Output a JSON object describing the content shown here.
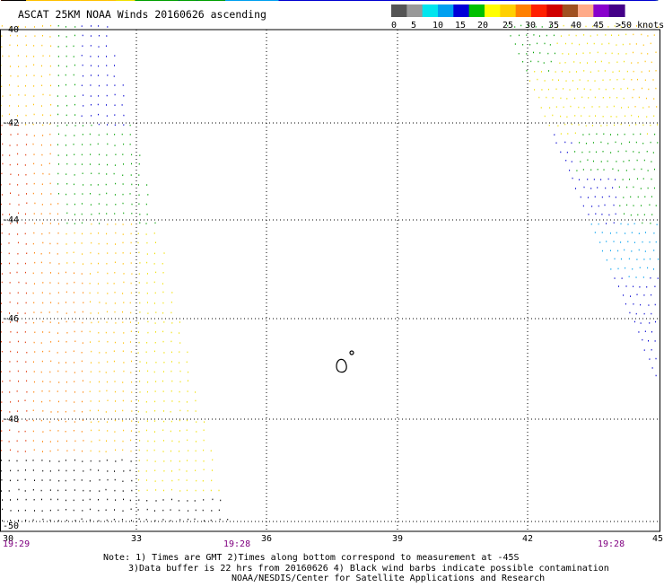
{
  "header": {
    "title": "ASCAT 25KM NOAA Winds 20160626 ascending"
  },
  "legend": {
    "colors": [
      "#555555",
      "#999999",
      "#00e5ee",
      "#00a0f0",
      "#0000d8",
      "#00c000",
      "#ffff00",
      "#ffd000",
      "#ff8000",
      "#ff2000",
      "#d00000",
      "#a05020",
      "#ffaa88",
      "#8800cc",
      "#440088"
    ],
    "ticks": [
      "0",
      "5",
      "10",
      "15",
      "20",
      "25",
      "30",
      "35",
      "40",
      "45",
      ">50 knots"
    ]
  },
  "axes": {
    "lon_labels": [
      "30",
      "33",
      "36",
      "39",
      "42",
      "45"
    ],
    "lat_labels": [
      "-40",
      "-42",
      "-44",
      "-46",
      "-48",
      "-50"
    ]
  },
  "swath_times": {
    "left_start": "19:29",
    "left_end": "19:28",
    "right_end": "19:28"
  },
  "notes": {
    "line1": "Note: 1) Times are GMT 2)Times along bottom correspond to measurement at -45S",
    "line2": "3)Data buffer is 22 hrs from 20160626 4) Black wind barbs indicate possible contamination",
    "line3": "NOAA/NESDIS/Center for Satellite Applications and Research"
  },
  "colors": {
    "text": "#000000",
    "time_text": "#800080",
    "grid": "#000000",
    "black_barb": "#000000",
    "green_barb": "#00a000",
    "blue_barb": "#0000d0",
    "lightblue_barb": "#00a0f0",
    "yellow_barb": "#f0e000",
    "amber_barb": "#ffc000",
    "orange_barb": "#ff8000",
    "red_barb": "#e03000"
  }
}
